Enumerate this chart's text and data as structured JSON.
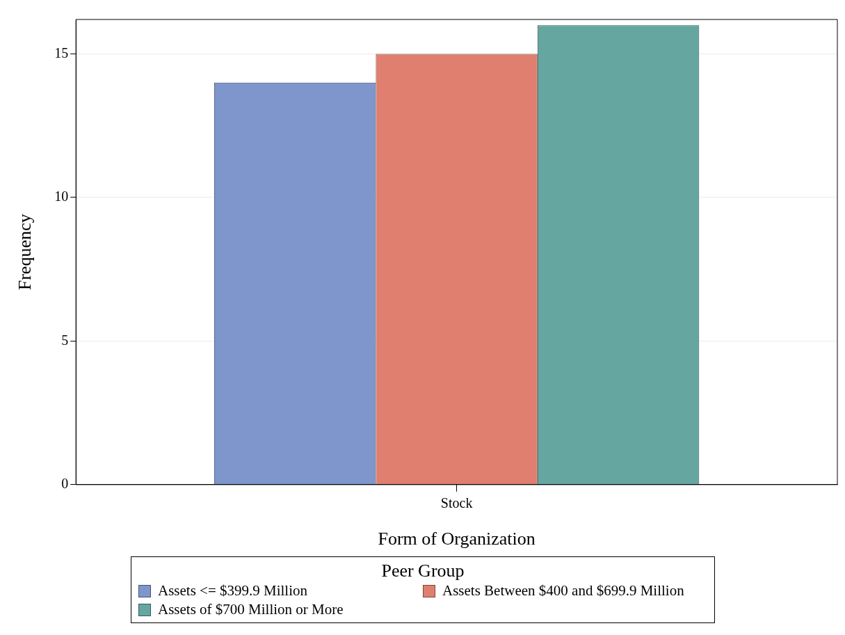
{
  "chart_data": {
    "type": "bar",
    "xlabel": "Form of Organization",
    "ylabel": "Frequency",
    "legend_title": "Peer Group",
    "categories": [
      "Stock"
    ],
    "series": [
      {
        "name": "Assets <= $399.9 Million",
        "color": "#7f96cc",
        "values": [
          14
        ]
      },
      {
        "name": "Assets Between $400 and $699.9 Million",
        "color": "#e07f6f",
        "values": [
          15
        ]
      },
      {
        "name": "Assets of $700 Million or More",
        "color": "#66a6a0",
        "values": [
          16
        ]
      }
    ],
    "ylim": [
      0,
      16.2
    ],
    "yticks": [
      0,
      5,
      10,
      15
    ],
    "grid": "y",
    "legend": "bottom"
  }
}
